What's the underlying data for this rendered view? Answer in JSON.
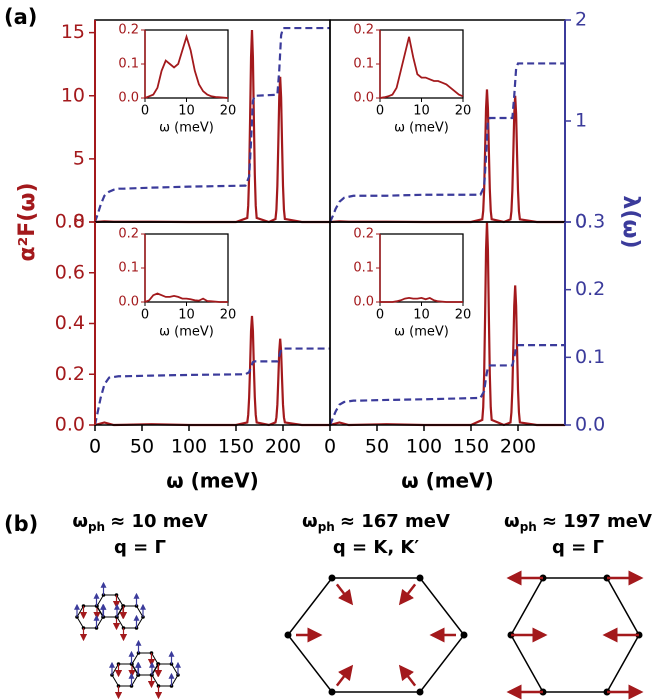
{
  "figure": {
    "panel_a": "(a)",
    "panel_b": "(b)",
    "ylabel": "α²F(ω)",
    "y2label": "λ(ω)"
  },
  "chart_data": [
    {
      "type": "line",
      "xlim": [
        0,
        250
      ],
      "ylim": [
        0,
        16
      ],
      "yticks": [
        0,
        5,
        10,
        15
      ],
      "y2lim": [
        0,
        2
      ],
      "series": [
        {
          "color": "#a3191c",
          "x": [
            0,
            10,
            20,
            60,
            100,
            150,
            162,
            163,
            164,
            165,
            166,
            167,
            168,
            169,
            170,
            171,
            172,
            185,
            192,
            193,
            194,
            195,
            196,
            197,
            198,
            199,
            200,
            201,
            202,
            220,
            250
          ],
          "values": [
            0,
            0.05,
            0.02,
            0.02,
            0,
            0,
            0.32,
            1.29,
            3.78,
            8.19,
            13.03,
            15.2,
            13.03,
            8.19,
            3.78,
            1.29,
            0.32,
            0,
            0.24,
            0.98,
            2.86,
            6.2,
            9.86,
            11.5,
            9.86,
            6.2,
            2.86,
            0.98,
            0.24,
            0,
            0
          ]
        },
        {
          "color": "#3b3b9b",
          "axis": "y2",
          "linestyle": "dashed",
          "x": [
            0,
            3,
            6,
            10,
            15,
            20,
            25,
            30,
            60,
            100,
            160,
            164,
            166,
            168,
            170,
            194,
            196,
            198,
            200,
            250
          ],
          "values": [
            0,
            0.08,
            0.17,
            0.26,
            0.3,
            0.32,
            0.33,
            0.33,
            0.34,
            0.35,
            0.36,
            0.45,
            0.8,
            1.2,
            1.25,
            1.26,
            1.5,
            1.85,
            1.92,
            1.92
          ]
        }
      ],
      "inset": {
        "xlim": [
          0,
          20
        ],
        "xticks": [
          0,
          10,
          20
        ],
        "ylim": [
          0,
          0.2
        ],
        "yticks": [
          {
            "value": 0,
            "label": "0.0"
          },
          {
            "value": 0.1,
            "label": "0.1"
          },
          {
            "value": 0.2,
            "label": "0.2"
          }
        ],
        "xlabel": "ω (meV)",
        "color": "#a3191c",
        "x": [
          0,
          1,
          2,
          3,
          4,
          5,
          6,
          7,
          8,
          9,
          10,
          11,
          12,
          13,
          14,
          15,
          16,
          17,
          18,
          19,
          20
        ],
        "values": [
          0,
          0.005,
          0.01,
          0.03,
          0.08,
          0.11,
          0.1,
          0.09,
          0.1,
          0.14,
          0.18,
          0.14,
          0.08,
          0.04,
          0.02,
          0.01,
          0.005,
          0.003,
          0.002,
          0.001,
          0
        ]
      }
    },
    {
      "type": "line",
      "xlim": [
        0,
        250
      ],
      "ylim": [
        0,
        16
      ],
      "y2lim": [
        0,
        2
      ],
      "y2ticks": [
        0,
        1,
        2
      ],
      "series": [
        {
          "color": "#a3191c",
          "x": [
            0,
            10,
            20,
            60,
            100,
            150,
            162,
            163,
            164,
            165,
            166,
            167,
            168,
            169,
            170,
            171,
            172,
            185,
            192,
            193,
            194,
            195,
            196,
            197,
            198,
            199,
            200,
            201,
            202,
            220,
            250
          ],
          "values": [
            0,
            0.05,
            0.02,
            0.02,
            0,
            0,
            0.22,
            0.89,
            2.61,
            5.66,
            9.0,
            10.5,
            9.0,
            5.66,
            2.61,
            0.89,
            0.22,
            0,
            0.21,
            0.85,
            2.49,
            5.39,
            8.57,
            10.0,
            8.57,
            5.39,
            2.49,
            0.85,
            0.21,
            0,
            0
          ]
        },
        {
          "color": "#3b3b9b",
          "axis": "y2",
          "linestyle": "dashed",
          "x": [
            0,
            3,
            6,
            10,
            15,
            20,
            25,
            30,
            60,
            100,
            160,
            164,
            166,
            168,
            170,
            194,
            196,
            198,
            200,
            250
          ],
          "values": [
            0,
            0.06,
            0.13,
            0.2,
            0.24,
            0.25,
            0.26,
            0.26,
            0.26,
            0.27,
            0.27,
            0.35,
            0.65,
            1.0,
            1.03,
            1.03,
            1.25,
            1.52,
            1.57,
            1.57
          ]
        }
      ],
      "inset": {
        "xlim": [
          0,
          20
        ],
        "xticks": [
          0,
          10,
          20
        ],
        "ylim": [
          0,
          0.2
        ],
        "yticks": [
          {
            "value": 0,
            "label": "0.0"
          },
          {
            "value": 0.1,
            "label": "0.1"
          },
          {
            "value": 0.2,
            "label": "0.2"
          }
        ],
        "xlabel": "ω (meV)",
        "color": "#a3191c",
        "x": [
          0,
          1,
          2,
          3,
          4,
          5,
          6,
          7,
          8,
          9,
          10,
          11,
          12,
          13,
          14,
          15,
          16,
          17,
          18,
          19,
          20
        ],
        "values": [
          0,
          0.002,
          0.005,
          0.01,
          0.03,
          0.08,
          0.13,
          0.18,
          0.12,
          0.07,
          0.06,
          0.06,
          0.055,
          0.05,
          0.05,
          0.045,
          0.04,
          0.03,
          0.02,
          0.01,
          0.005
        ]
      }
    },
    {
      "type": "line",
      "xlim": [
        0,
        250
      ],
      "xticks": [
        0,
        50,
        100,
        150,
        200
      ],
      "xlabel": "ω (meV)",
      "ylim": [
        0,
        0.8
      ],
      "yticks": [
        {
          "value": 0,
          "label": "0.0"
        },
        {
          "value": 0.2,
          "label": "0.2"
        },
        {
          "value": 0.4,
          "label": "0.4"
        },
        {
          "value": 0.6,
          "label": "0.6"
        },
        {
          "value": 0.8,
          "label": "0.8"
        }
      ],
      "y2lim": [
        0,
        0.3
      ],
      "series": [
        {
          "color": "#a3191c",
          "x": [
            0,
            10,
            20,
            60,
            100,
            150,
            162,
            163,
            164,
            165,
            166,
            167,
            168,
            169,
            170,
            171,
            172,
            185,
            192,
            193,
            194,
            195,
            196,
            197,
            198,
            199,
            200,
            201,
            202,
            220,
            250
          ],
          "values": [
            0,
            0.01,
            0,
            0.003,
            0,
            0,
            0.01,
            0.04,
            0.11,
            0.23,
            0.37,
            0.43,
            0.37,
            0.23,
            0.11,
            0.04,
            0.01,
            0,
            0.01,
            0.03,
            0.08,
            0.18,
            0.29,
            0.34,
            0.29,
            0.18,
            0.08,
            0.03,
            0.01,
            0,
            0
          ]
        },
        {
          "color": "#3b3b9b",
          "axis": "y2",
          "linestyle": "dashed",
          "x": [
            0,
            3,
            6,
            10,
            15,
            20,
            25,
            30,
            60,
            100,
            160,
            164,
            166,
            168,
            170,
            194,
            196,
            198,
            200,
            250
          ],
          "values": [
            0,
            0.02,
            0.04,
            0.06,
            0.07,
            0.071,
            0.072,
            0.072,
            0.073,
            0.074,
            0.075,
            0.078,
            0.086,
            0.093,
            0.094,
            0.094,
            0.102,
            0.111,
            0.113,
            0.113
          ]
        }
      ],
      "inset": {
        "xlim": [
          0,
          20
        ],
        "xticks": [
          0,
          10,
          20
        ],
        "ylim": [
          0,
          0.2
        ],
        "yticks": [
          {
            "value": 0,
            "label": "0.0"
          },
          {
            "value": 0.1,
            "label": "0.1"
          },
          {
            "value": 0.2,
            "label": "0.2"
          }
        ],
        "xlabel": "ω (meV)",
        "color": "#a3191c",
        "x": [
          0,
          1,
          2,
          3,
          4,
          5,
          6,
          7,
          8,
          9,
          10,
          11,
          12,
          13,
          14,
          15,
          16,
          17,
          18,
          19,
          20
        ],
        "values": [
          0,
          0.005,
          0.02,
          0.025,
          0.02,
          0.015,
          0.015,
          0.018,
          0.015,
          0.01,
          0.01,
          0.008,
          0.005,
          0.004,
          0.01,
          0.003,
          0.002,
          0.001,
          0,
          0,
          0
        ]
      }
    },
    {
      "type": "line",
      "xlim": [
        0,
        250
      ],
      "xticks": [
        0,
        50,
        100,
        150,
        200
      ],
      "xlabel": "ω (meV)",
      "ylim": [
        0,
        0.8
      ],
      "y2lim": [
        0,
        0.3
      ],
      "y2ticks": [
        {
          "value": 0,
          "label": "0.0"
        },
        {
          "value": 0.1,
          "label": "0.1"
        },
        {
          "value": 0.2,
          "label": "0.2"
        },
        {
          "value": 0.3,
          "label": "0.3"
        }
      ],
      "series": [
        {
          "color": "#a3191c",
          "x": [
            0,
            10,
            20,
            60,
            100,
            150,
            162,
            163,
            164,
            165,
            166,
            167,
            168,
            169,
            170,
            171,
            172,
            185,
            192,
            193,
            194,
            195,
            196,
            197,
            198,
            199,
            200,
            201,
            202,
            220,
            250
          ],
          "values": [
            0,
            0.01,
            0,
            0.003,
            0,
            0,
            0.02,
            0.07,
            0.2,
            0.43,
            0.69,
            0.8,
            0.69,
            0.43,
            0.2,
            0.07,
            0.02,
            0,
            0.01,
            0.05,
            0.14,
            0.3,
            0.47,
            0.55,
            0.47,
            0.3,
            0.14,
            0.05,
            0.01,
            0,
            0
          ]
        },
        {
          "color": "#3b3b9b",
          "axis": "y2",
          "linestyle": "dashed",
          "x": [
            0,
            3,
            6,
            10,
            15,
            20,
            25,
            30,
            60,
            100,
            160,
            164,
            166,
            168,
            170,
            194,
            196,
            198,
            200,
            250
          ],
          "values": [
            0,
            0.01,
            0.02,
            0.03,
            0.034,
            0.035,
            0.036,
            0.036,
            0.037,
            0.038,
            0.04,
            0.05,
            0.07,
            0.086,
            0.088,
            0.088,
            0.1,
            0.115,
            0.118,
            0.118
          ]
        }
      ],
      "inset": {
        "xlim": [
          0,
          20
        ],
        "xticks": [
          0,
          10,
          20
        ],
        "ylim": [
          0,
          0.2
        ],
        "yticks": [
          {
            "value": 0,
            "label": "0.0"
          },
          {
            "value": 0.1,
            "label": "0.1"
          },
          {
            "value": 0.2,
            "label": "0.2"
          }
        ],
        "xlabel": "ω (meV)",
        "color": "#a3191c",
        "x": [
          0,
          1,
          2,
          3,
          4,
          5,
          6,
          7,
          8,
          9,
          10,
          11,
          12,
          13,
          14,
          15,
          16,
          17,
          18,
          19,
          20
        ],
        "values": [
          0,
          0,
          0,
          0,
          0.002,
          0.005,
          0.01,
          0.012,
          0.01,
          0.01,
          0.012,
          0.008,
          0.012,
          0.005,
          0.002,
          0.001,
          0,
          0,
          0,
          0,
          0
        ]
      }
    }
  ],
  "modes": [
    {
      "omega": "ω",
      "sub": "ph",
      "energy": "≈ 10 meV",
      "q": "q = Γ"
    },
    {
      "omega": "ω",
      "sub": "ph",
      "energy": "≈ 167 meV",
      "q": "q = K, K′"
    },
    {
      "omega": "ω",
      "sub": "ph",
      "energy": "≈ 197 meV",
      "q": "q = Γ"
    }
  ]
}
